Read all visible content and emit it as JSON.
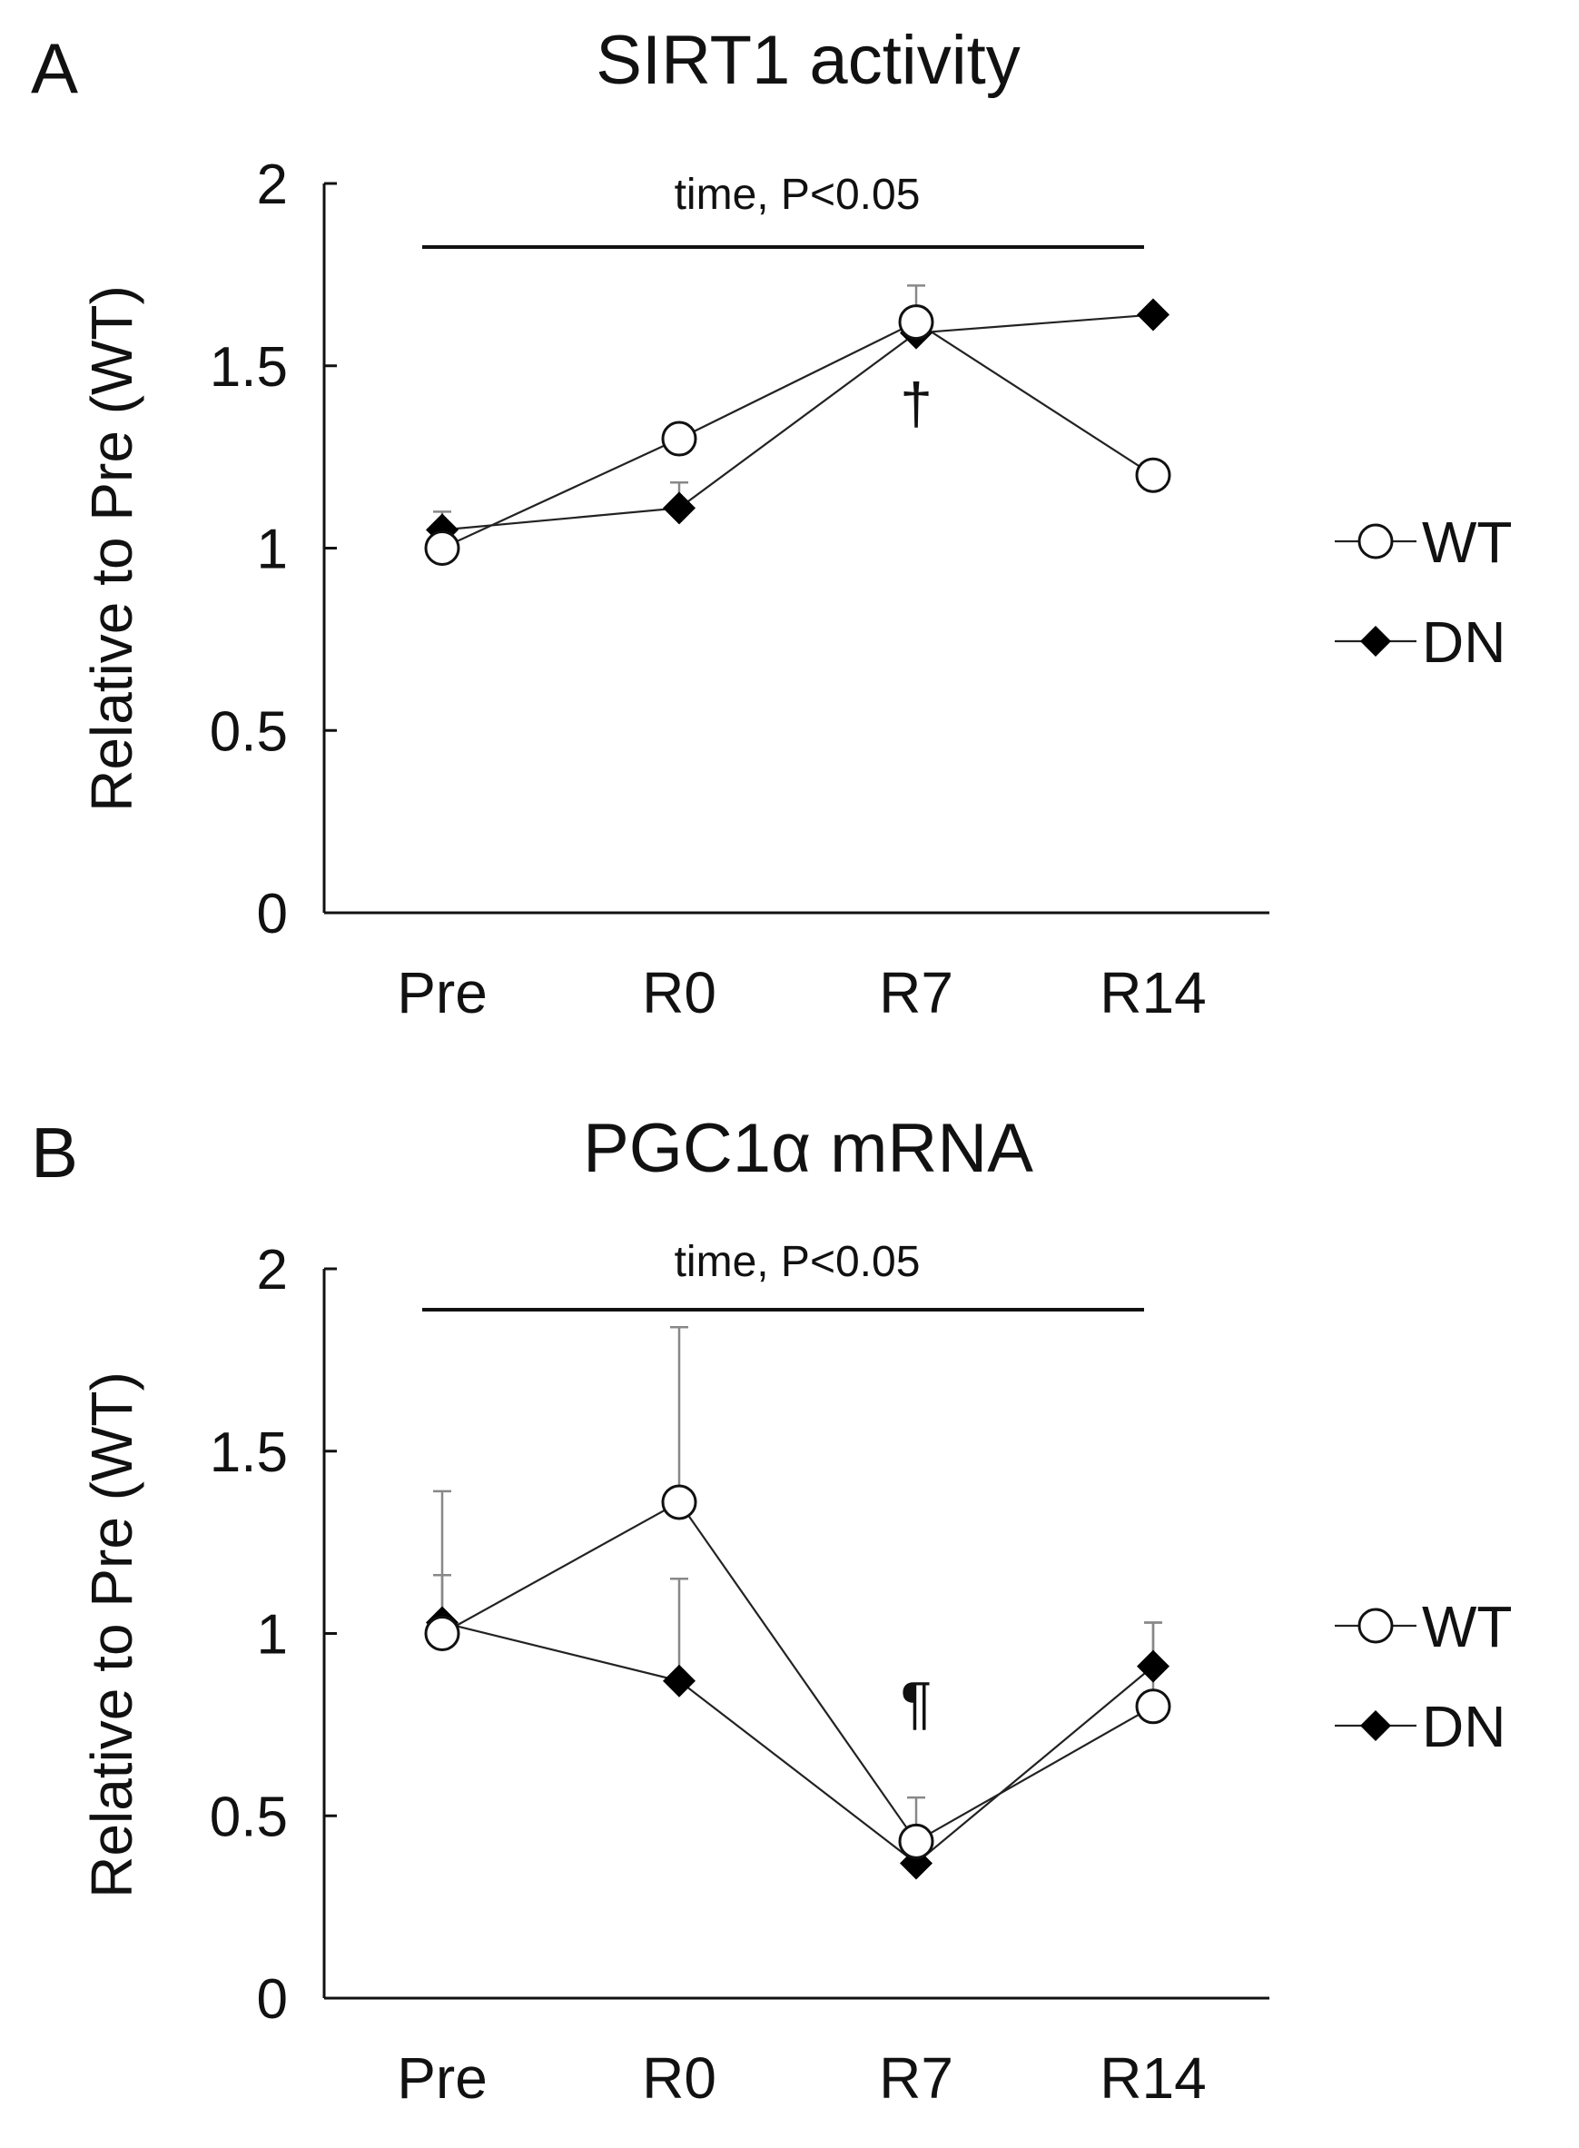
{
  "chart_data": [
    {
      "type": "line",
      "panel_label": "A",
      "title": "SIRT1 activity",
      "xlabel": "",
      "ylabel": "Relative to Pre (WT)",
      "categories": [
        "Pre",
        "R0",
        "R7",
        "R14"
      ],
      "ylim": [
        0,
        2
      ],
      "yticks": [
        0,
        0.5,
        1,
        1.5,
        2
      ],
      "ytick_labels": [
        "0",
        "0.5",
        "1",
        "1.5",
        "2"
      ],
      "annotation": "time, P<0.05",
      "symbol_annotations": [
        {
          "category": "R7",
          "text": "†"
        }
      ],
      "series": [
        {
          "name": "WT",
          "marker": "circle-open",
          "values": [
            1.0,
            1.3,
            1.62,
            1.2
          ],
          "errors": [
            0.0,
            0.0,
            0.1,
            0.0
          ]
        },
        {
          "name": "DN",
          "marker": "diamond-filled",
          "values": [
            1.05,
            1.11,
            1.59,
            1.64
          ],
          "errors": [
            0.05,
            0.07,
            0.0,
            0.0
          ]
        }
      ],
      "legend_position": "right"
    },
    {
      "type": "line",
      "panel_label": "B",
      "title": "PGC1α mRNA",
      "xlabel": "",
      "ylabel": "Relative to Pre (WT)",
      "categories": [
        "Pre",
        "R0",
        "R7",
        "R14"
      ],
      "ylim": [
        0,
        2
      ],
      "yticks": [
        0,
        0.5,
        1,
        1.5,
        2
      ],
      "ytick_labels": [
        "0",
        "0.5",
        "1",
        "1.5",
        "2"
      ],
      "annotation": "time, P<0.05",
      "symbol_annotations": [
        {
          "category": "R7",
          "text": "¶"
        }
      ],
      "series": [
        {
          "name": "WT",
          "marker": "circle-open",
          "values": [
            1.0,
            1.36,
            0.43,
            0.8
          ],
          "errors": [
            0.39,
            0.48,
            0.12,
            0.23
          ]
        },
        {
          "name": "DN",
          "marker": "diamond-filled",
          "values": [
            1.03,
            0.87,
            0.37,
            0.91
          ],
          "errors": [
            0.13,
            0.28,
            0.0,
            0.12
          ]
        }
      ],
      "legend_position": "right"
    }
  ]
}
